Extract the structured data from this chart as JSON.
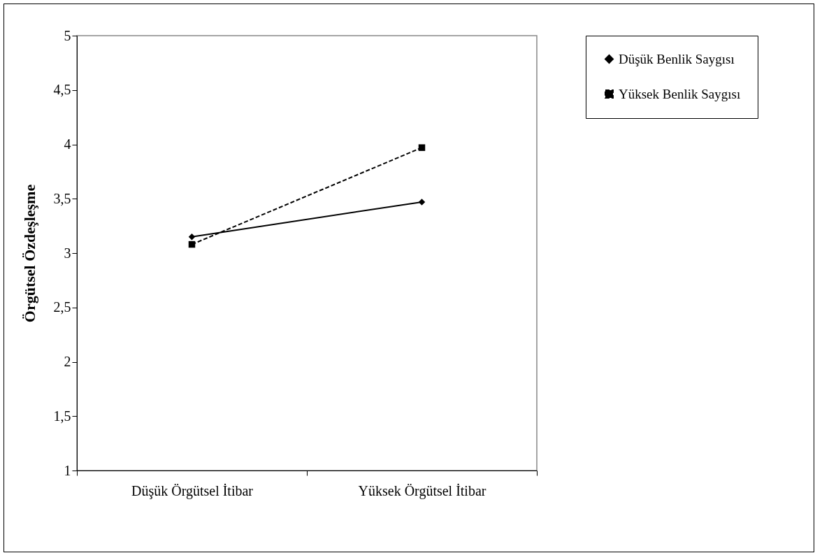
{
  "chart_data": {
    "type": "line",
    "ylabel": "Örgütsel Özdeşleşme",
    "categories": [
      "Düşük Örgütsel İtibar",
      "Yüksek Örgütsel İtibar"
    ],
    "series": [
      {
        "name": "Düşük Benlik Saygısı",
        "color": "#000000",
        "values": [
          3.15,
          3.47
        ],
        "marker": "diamond",
        "line_style": "solid"
      },
      {
        "name": "Yüksek Benlik Saygısı",
        "color": "#000000",
        "values": [
          3.08,
          3.97
        ],
        "marker": "square",
        "line_style": "dashed"
      }
    ],
    "ylim": [
      1,
      5
    ],
    "yticks": [
      {
        "value": 1,
        "label": "1"
      },
      {
        "value": 1.5,
        "label": "1,5"
      },
      {
        "value": 2,
        "label": "2"
      },
      {
        "value": 2.5,
        "label": "2,5"
      },
      {
        "value": 3,
        "label": "3"
      },
      {
        "value": 3.5,
        "label": "3,5"
      },
      {
        "value": 4,
        "label": "4"
      },
      {
        "value": 4.5,
        "label": "4,5"
      },
      {
        "value": 5,
        "label": "5"
      }
    ],
    "grid": false,
    "legend": "right"
  }
}
